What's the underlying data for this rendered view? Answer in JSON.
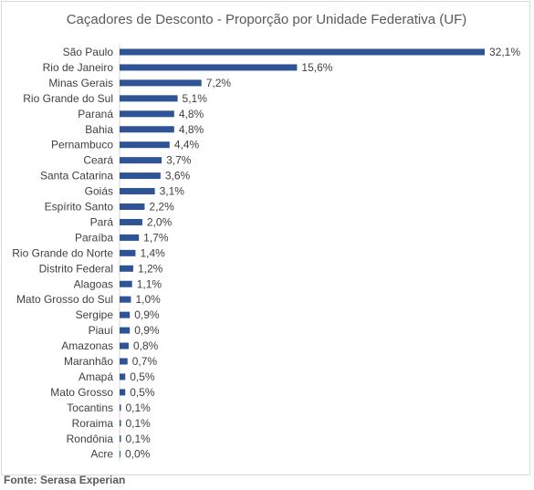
{
  "chart_data": {
    "type": "bar",
    "orientation": "horizontal",
    "title": "Caçadores de Desconto - Proporção por Unidade Federativa (UF)",
    "categories": [
      "São Paulo",
      "Rio de Janeiro",
      "Minas Gerais",
      "Rio Grande do Sul",
      "Paraná",
      "Bahia",
      "Pernambuco",
      "Ceará",
      "Santa Catarina",
      "Goiás",
      "Espírito Santo",
      "Pará",
      "Paraíba",
      "Rio Grande do Norte",
      "Distrito Federal",
      "Alagoas",
      "Mato Grosso do Sul",
      "Sergipe",
      "Piauí",
      "Amazonas",
      "Maranhão",
      "Amapá",
      "Mato Grosso",
      "Tocantins",
      "Roraima",
      "Rondônia",
      "Acre"
    ],
    "values": [
      32.1,
      15.6,
      7.2,
      5.1,
      4.8,
      4.8,
      4.4,
      3.7,
      3.6,
      3.1,
      2.2,
      2.0,
      1.7,
      1.4,
      1.2,
      1.1,
      1.0,
      0.9,
      0.9,
      0.8,
      0.7,
      0.5,
      0.5,
      0.1,
      0.1,
      0.1,
      0.0
    ],
    "value_labels": [
      "32,1%",
      "15,6%",
      "7,2%",
      "5,1%",
      "4,8%",
      "4,8%",
      "4,4%",
      "3,7%",
      "3,6%",
      "3,1%",
      "2,2%",
      "2,0%",
      "1,7%",
      "1,4%",
      "1,2%",
      "1,1%",
      "1,0%",
      "0,9%",
      "0,9%",
      "0,8%",
      "0,7%",
      "0,5%",
      "0,5%",
      "0,1%",
      "0,1%",
      "0,1%",
      "0,0%"
    ],
    "bar_color": "#2f5496",
    "xlim": [
      0,
      32.1
    ],
    "grid": false,
    "legend": false
  },
  "footer": {
    "source": "Fonte: Serasa Experian"
  }
}
